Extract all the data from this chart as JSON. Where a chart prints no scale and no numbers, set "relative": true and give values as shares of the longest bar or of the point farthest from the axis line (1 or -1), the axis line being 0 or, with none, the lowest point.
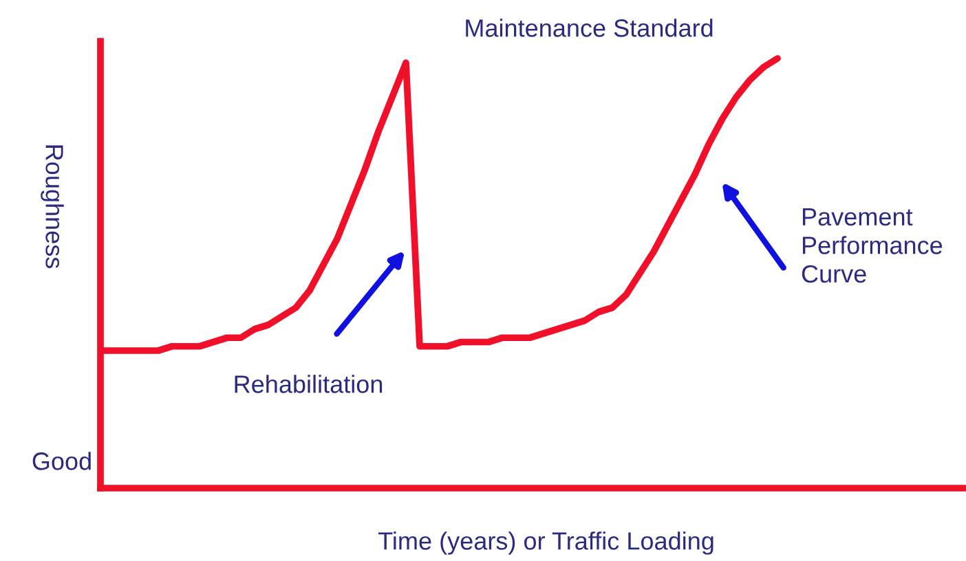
{
  "chart_data": {
    "type": "line",
    "relative": true,
    "title": "Maintenance Standard",
    "xlabel": "Time (years) or Traffic Loading",
    "ylabel": "Roughness",
    "annotations": [
      "Rehabilitation",
      "Pavement\nPerformance\nCurve",
      "Good"
    ],
    "categories": [
      null,
      null,
      null,
      null,
      null,
      null,
      null,
      null,
      null,
      null,
      null,
      null,
      null,
      null,
      null,
      null,
      null,
      null,
      null,
      null,
      null,
      null,
      null,
      null,
      null,
      null,
      null,
      null,
      null,
      null,
      null,
      null,
      null,
      null,
      null,
      null,
      null,
      null,
      null,
      null,
      null,
      null,
      null,
      null,
      null,
      null,
      null,
      null,
      null,
      null
    ],
    "series": [
      {
        "color": "#f0102a",
        "values": [
          0.32,
          0.32,
          0.32,
          0.32,
          0.32,
          0.33,
          0.33,
          0.33,
          0.34,
          0.35,
          0.35,
          0.37,
          0.38,
          0.4,
          0.42,
          0.46,
          0.52,
          0.58,
          0.66,
          0.74,
          0.83,
          0.91,
          0.99,
          0.33,
          0.33,
          0.33,
          0.34,
          0.34,
          0.34,
          0.35,
          0.35,
          0.35,
          0.36,
          0.37,
          0.38,
          0.39,
          0.41,
          0.42,
          0.45,
          0.5,
          0.55,
          0.61,
          0.67,
          0.73,
          0.8,
          0.86,
          0.91,
          0.95,
          0.98,
          1
        ]
      }
    ]
  }
}
